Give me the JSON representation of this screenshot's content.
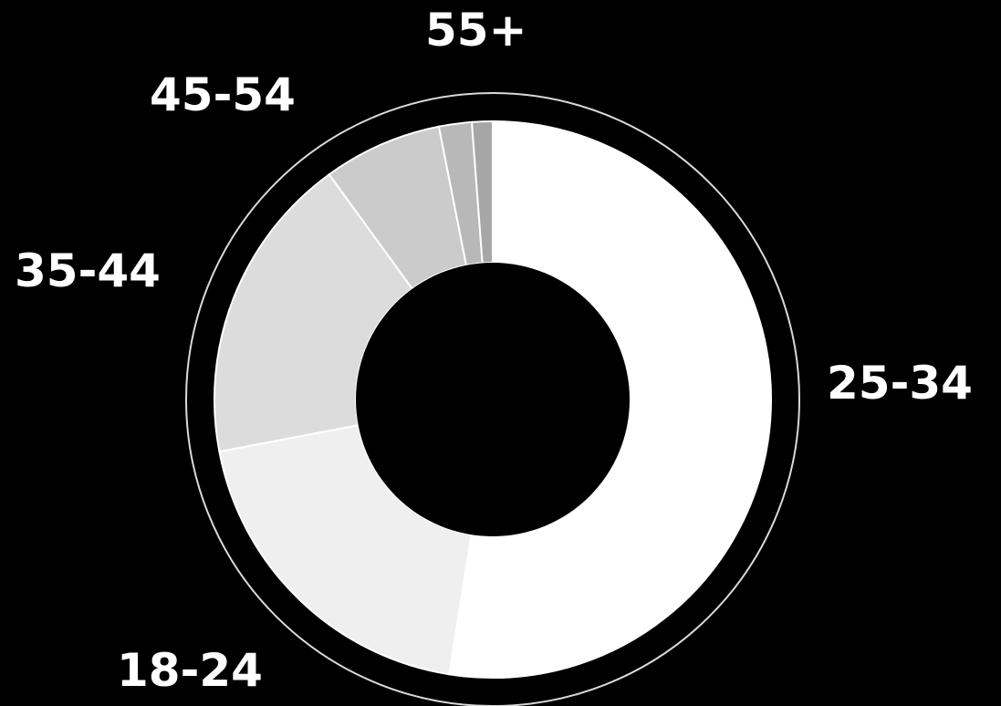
{
  "chart_data": {
    "type": "pie",
    "donut": true,
    "title": "",
    "categories": [
      "25-34",
      "18-24",
      "35-44",
      "45-54",
      "55+"
    ],
    "values": [
      52.5,
      19.5,
      18.0,
      6.9,
      1.9
    ],
    "series": [
      {
        "values": [
          52.5,
          19.5,
          18.0,
          6.9,
          1.9
        ]
      }
    ],
    "extra_slice_value": 1.2,
    "start_angle": "12 o'clock",
    "direction": "clockwise",
    "legend": "none",
    "labels_outside": true
  },
  "colors": {
    "background": "#000000",
    "label_text": "#ffffff",
    "outer_ring": "#d9d9d9",
    "segment_separator": "#ffffff",
    "segments": [
      "#ffffff",
      "#efefef",
      "#dcdcdc",
      "#cbcbcb",
      "#b8b8b8",
      "#a6a6a6"
    ]
  }
}
